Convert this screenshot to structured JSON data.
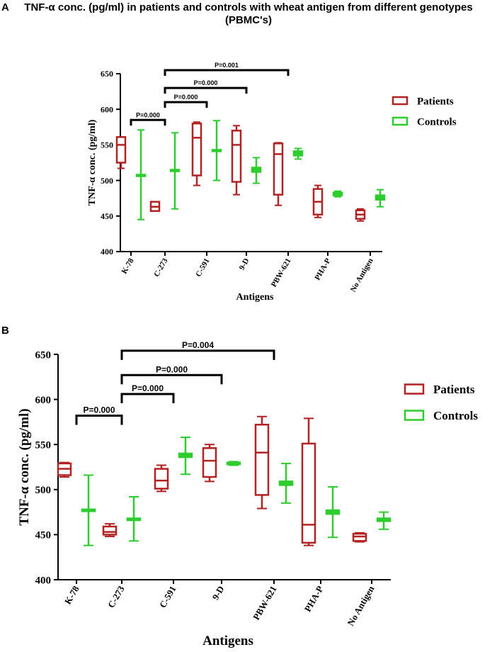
{
  "figure": {
    "title_line1": "TNF-α conc. (pg/ml) in patients and controls with wheat antigen from different genotypes",
    "title_line2": "(PBMC's)",
    "panel_a_letter": "A",
    "panel_b_letter": "B"
  },
  "colors": {
    "patients": "#b22222",
    "controls": "#2ecc2e",
    "axis": "#000000"
  },
  "chart_data": [
    {
      "type": "box",
      "panel": "A",
      "ylabel": "TNF-α conc. (pg/ml)",
      "xlabel": "Antigens",
      "ylim": [
        400,
        650
      ],
      "yticks": [
        400,
        450,
        500,
        550,
        600,
        650
      ],
      "categories": [
        "K-78",
        "C-273",
        "C-591",
        "9-D",
        "PBW-621",
        "PHA-P",
        "No Antigen"
      ],
      "legend": [
        "Patients",
        "Controls"
      ],
      "legend_position": "right",
      "series": [
        {
          "name": "Patients",
          "boxes": [
            {
              "min": 517,
              "q1": 525,
              "median": 550,
              "q3": 561,
              "max": 561
            },
            {
              "min": 457,
              "q1": 457,
              "median": 463,
              "q3": 470,
              "max": 470
            },
            {
              "min": 493,
              "q1": 507,
              "median": 560,
              "q3": 580,
              "max": 582
            },
            {
              "min": 480,
              "q1": 498,
              "median": 550,
              "q3": 570,
              "max": 577
            },
            {
              "min": 465,
              "q1": 480,
              "median": 537,
              "q3": 552,
              "max": 553
            },
            {
              "min": 448,
              "q1": 452,
              "median": 470,
              "q3": 488,
              "max": 493
            },
            {
              "min": 443,
              "q1": 446,
              "median": 452,
              "q3": 458,
              "max": 460
            }
          ]
        },
        {
          "name": "Controls",
          "boxes": [
            {
              "min": 445,
              "q1": 507,
              "median": 507,
              "q3": 508,
              "max": 571
            },
            {
              "min": 460,
              "q1": 513,
              "median": 514,
              "q3": 515,
              "max": 567
            },
            {
              "min": 500,
              "q1": 541,
              "median": 542,
              "q3": 543,
              "max": 584
            },
            {
              "min": 496,
              "q1": 512,
              "median": 514,
              "q3": 518,
              "max": 532
            },
            {
              "min": 530,
              "q1": 535,
              "median": 537,
              "q3": 541,
              "max": 545
            },
            {
              "min": 477,
              "q1": 479,
              "median": 480,
              "q3": 483,
              "max": 485
            },
            {
              "min": 463,
              "q1": 473,
              "median": 476,
              "q3": 479,
              "max": 487
            }
          ]
        }
      ],
      "significance": [
        {
          "from": 0,
          "to": 1,
          "label": "P=0.000",
          "y": 585
        },
        {
          "from": 1,
          "to": 2,
          "label": "P=0.000",
          "y": 610
        },
        {
          "from": 1,
          "to": 3,
          "label": "P=0.000",
          "y": 630
        },
        {
          "from": 1,
          "to": 4,
          "label": "P=0.001",
          "y": 655
        }
      ]
    },
    {
      "type": "box",
      "panel": "B",
      "ylabel": "TNF-α conc. (pg/ml)",
      "xlabel": "Antigens",
      "ylim": [
        400,
        650
      ],
      "yticks": [
        400,
        450,
        500,
        550,
        600,
        650
      ],
      "categories": [
        "K-78",
        "C-273",
        "C-591",
        "9-D",
        "PBW-621",
        "PHA-P",
        "No Antigen"
      ],
      "legend": [
        "Patients",
        "Controls"
      ],
      "legend_position": "right",
      "series": [
        {
          "name": "Patients",
          "boxes": [
            {
              "min": 514,
              "q1": 516,
              "median": 523,
              "q3": 529,
              "max": 530
            },
            {
              "min": 448,
              "q1": 450,
              "median": 453,
              "q3": 459,
              "max": 462
            },
            {
              "min": 498,
              "q1": 501,
              "median": 510,
              "q3": 523,
              "max": 527
            },
            {
              "min": 509,
              "q1": 514,
              "median": 532,
              "q3": 546,
              "max": 550
            },
            {
              "min": 479,
              "q1": 494,
              "median": 541,
              "q3": 572,
              "max": 581
            },
            {
              "min": 438,
              "q1": 441,
              "median": 461,
              "q3": 551,
              "max": 579
            },
            {
              "min": 442,
              "q1": 443,
              "median": 448,
              "q3": 451,
              "max": 452
            }
          ]
        },
        {
          "name": "Controls",
          "boxes": [
            {
              "min": 438,
              "q1": 476,
              "median": 477,
              "q3": 478,
              "max": 516
            },
            {
              "min": 443,
              "q1": 466,
              "median": 467,
              "q3": 468,
              "max": 492
            },
            {
              "min": 517,
              "q1": 536,
              "median": 538,
              "q3": 540,
              "max": 558
            },
            {
              "min": 527,
              "q1": 528,
              "median": 529,
              "q3": 530,
              "max": 531
            },
            {
              "min": 485,
              "q1": 505,
              "median": 507,
              "q3": 509,
              "max": 529
            },
            {
              "min": 447,
              "q1": 473,
              "median": 475,
              "q3": 477,
              "max": 503
            },
            {
              "min": 456,
              "q1": 465,
              "median": 466,
              "q3": 468,
              "max": 475
            }
          ]
        }
      ],
      "significance": [
        {
          "from": 0,
          "to": 1,
          "label": "P=0.000",
          "y": 582
        },
        {
          "from": 1,
          "to": 2,
          "label": "P=0.000",
          "y": 606
        },
        {
          "from": 1,
          "to": 3,
          "label": "P=0.000",
          "y": 627
        },
        {
          "from": 1,
          "to": 4,
          "label": "P=0.004",
          "y": 654
        }
      ]
    }
  ]
}
